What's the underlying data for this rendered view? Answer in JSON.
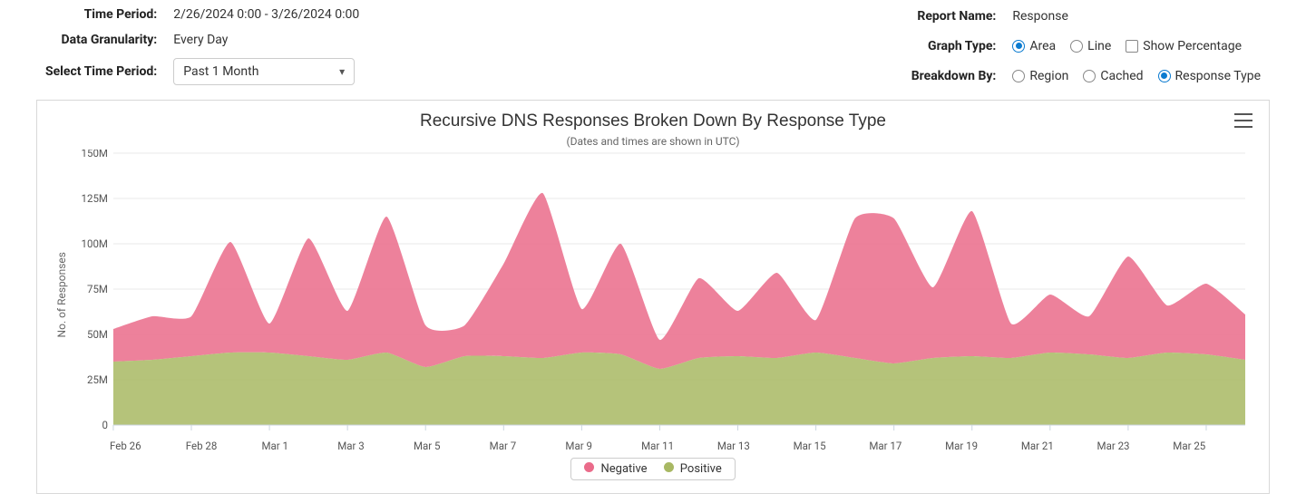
{
  "controls": {
    "time_period_label": "Time Period:",
    "time_period_value": "2/26/2024 0:00 - 3/26/2024 0:00",
    "data_granularity_label": "Data Granularity:",
    "data_granularity_value": "Every Day",
    "select_time_period_label": "Select Time Period:",
    "select_time_period_value": "Past 1 Month",
    "report_name_label": "Report Name:",
    "report_name_value": "Response",
    "graph_type_label": "Graph Type:",
    "graph_type_options": [
      "Area",
      "Line"
    ],
    "graph_type_selected": "Area",
    "show_percentage_label": "Show Percentage",
    "show_percentage_checked": false,
    "breakdown_label": "Breakdown By:",
    "breakdown_options": [
      "Region",
      "Cached",
      "Response Type"
    ],
    "breakdown_selected": "Response Type"
  },
  "chart": {
    "type": "area",
    "title": "Recursive DNS Responses Broken Down By Response Type",
    "subtitle": "(Dates and times are shown in UTC)",
    "title_fontsize": 19,
    "subtitle_fontsize": 12,
    "yaxis_title": "No. of Responses",
    "label_fontsize": 12,
    "ylim": [
      0,
      150
    ],
    "ytick_step": 25,
    "ytick_labels": [
      "0",
      "25M",
      "50M",
      "75M",
      "100M",
      "125M",
      "150M"
    ],
    "x_categories": [
      "Feb 26",
      "Feb 28",
      "Mar 1",
      "Mar 3",
      "Mar 5",
      "Mar 7",
      "Mar 9",
      "Mar 11",
      "Mar 13",
      "Mar 15",
      "Mar 17",
      "Mar 19",
      "Mar 21",
      "Mar 23",
      "Mar 25"
    ],
    "x_tick_step_days": 2,
    "n_points": 30,
    "series": [
      {
        "name": "Positive",
        "color": "#a8b863",
        "fill_opacity": 0.85,
        "values": [
          35,
          36,
          38,
          40,
          40,
          38,
          36,
          40,
          32,
          38,
          38,
          37,
          40,
          39,
          31,
          37,
          38,
          37,
          40,
          37,
          34,
          37,
          38,
          37,
          40,
          39,
          37,
          40,
          39,
          36
        ]
      },
      {
        "name": "Negative",
        "color": "#ea6b8a",
        "fill_opacity": 0.85,
        "values": [
          18,
          24,
          22,
          61,
          16,
          65,
          27,
          75,
          23,
          17,
          51,
          91,
          24,
          61,
          16,
          44,
          25,
          47,
          18,
          77,
          80,
          39,
          80,
          19,
          32,
          21,
          56,
          26,
          39,
          25
        ]
      }
    ],
    "legend_items": [
      {
        "label": "Negative",
        "color": "#ea6b8a"
      },
      {
        "label": "Positive",
        "color": "#a8b863"
      }
    ],
    "background_color": "#ffffff",
    "grid_color": "#e8e8e8",
    "axis_color": "#ccd6e0",
    "plot_inner_width": 1250,
    "plot_inner_height": 300,
    "plot_left_pad": 48,
    "plot_top_pad": 4,
    "smoothing": 0.5
  }
}
